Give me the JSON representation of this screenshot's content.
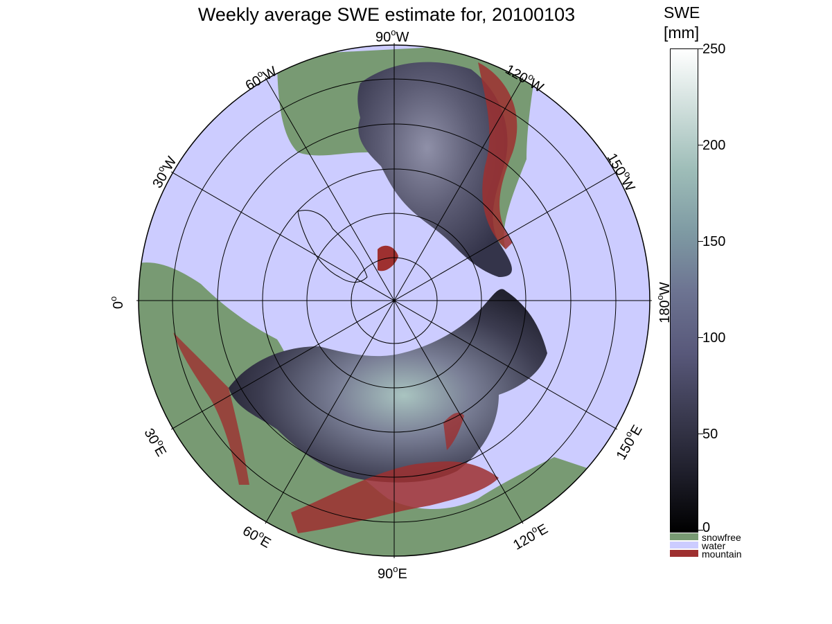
{
  "title": "Weekly average SWE estimate for, 20100103",
  "map": {
    "longitude_labels": [
      {
        "text": "90",
        "hem": "W"
      },
      {
        "text": "120",
        "hem": "W"
      },
      {
        "text": "150",
        "hem": "W"
      },
      {
        "text": "180",
        "hem": "W"
      },
      {
        "text": "150",
        "hem": "E"
      },
      {
        "text": "120",
        "hem": "E"
      },
      {
        "text": "90",
        "hem": "E"
      },
      {
        "text": "60",
        "hem": "E"
      },
      {
        "text": "30",
        "hem": "E"
      },
      {
        "text": "0",
        "hem": ""
      },
      {
        "text": "30",
        "hem": "W"
      },
      {
        "text": "60",
        "hem": "W"
      }
    ]
  },
  "colorbar": {
    "title_line1": "SWE",
    "title_line2": "[mm]",
    "ticks": [
      "250",
      "200",
      "150",
      "100",
      "50",
      "0"
    ],
    "range": [
      0,
      250
    ]
  },
  "legend": {
    "items": [
      {
        "label": "snowfree",
        "color": "#789a73"
      },
      {
        "label": "water",
        "color": "#ccccff"
      },
      {
        "label": "mountain",
        "color": "#9e3030"
      }
    ]
  },
  "colors": {
    "water": "#ccccff",
    "snowfree": "#789a73",
    "mountain": "#9e3030",
    "snow_mid": "#5a5a70"
  }
}
